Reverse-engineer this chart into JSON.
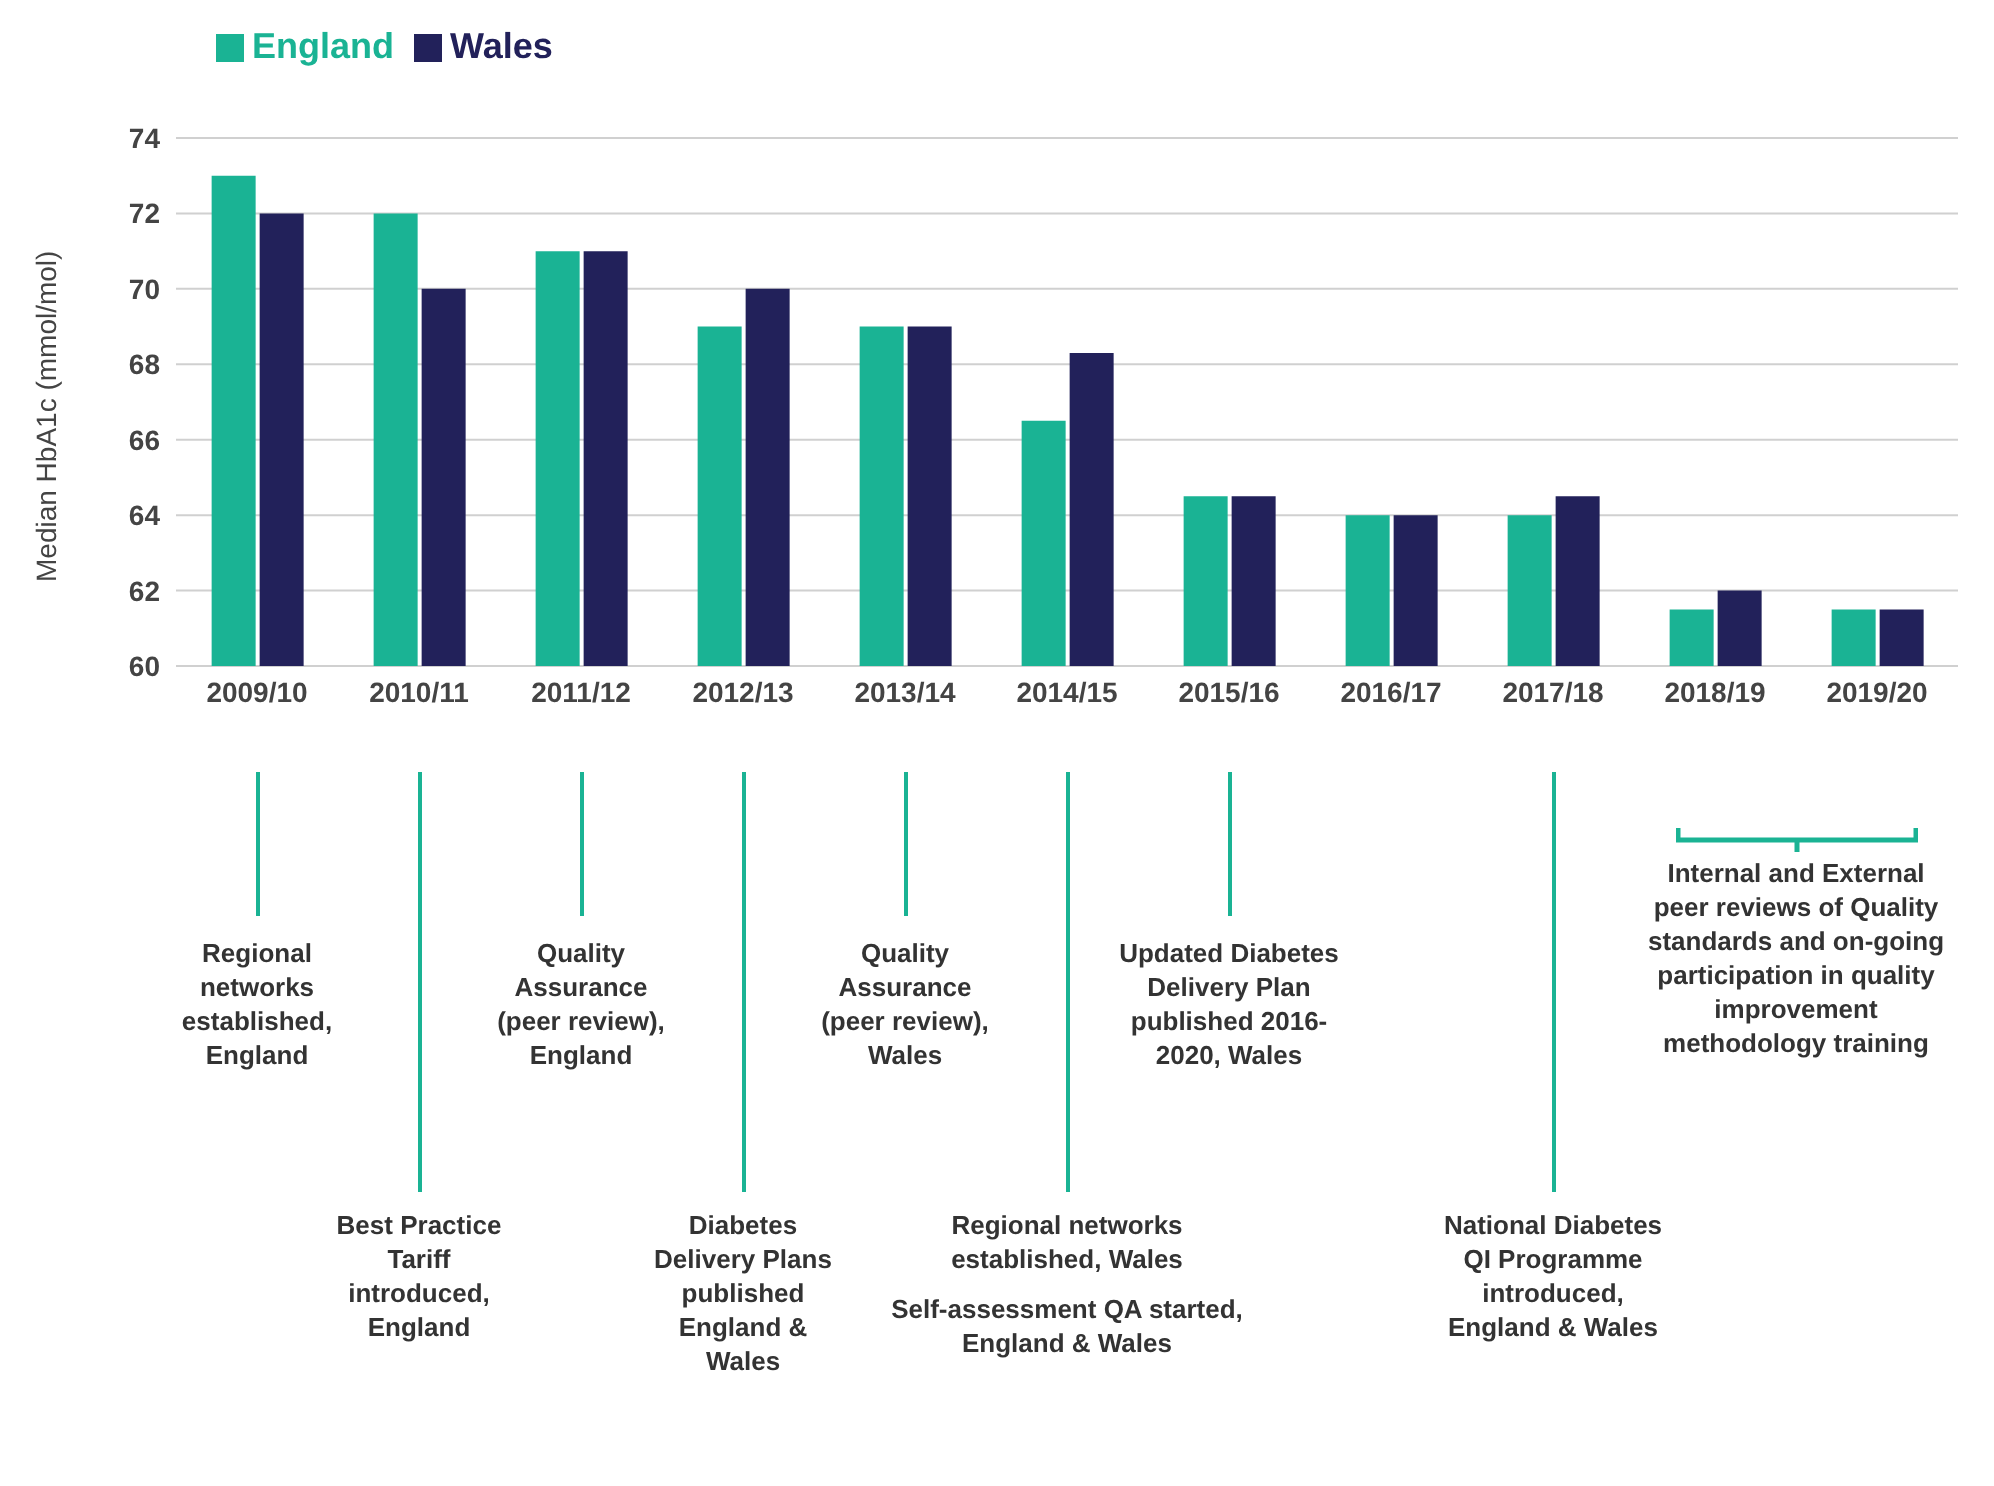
{
  "chart_data": {
    "type": "bar",
    "ylabel": "Median HbA1c (mmol/mol)",
    "categories": [
      "2009/10",
      "2010/11",
      "2011/12",
      "2012/13",
      "2013/14",
      "2014/15",
      "2015/16",
      "2016/17",
      "2017/18",
      "2018/19",
      "2019/20"
    ],
    "series": [
      {
        "name": "England",
        "color": "#1ab394",
        "values": [
          73,
          72,
          71,
          69,
          69,
          66.5,
          64.5,
          64,
          64,
          61.5,
          61.5
        ]
      },
      {
        "name": "Wales",
        "color": "#22215a",
        "values": [
          72,
          70,
          71,
          70,
          69,
          68.3,
          64.5,
          64,
          64.5,
          62,
          61.5
        ]
      }
    ],
    "ylim": [
      60,
      74
    ],
    "yticks": [
      60,
      62,
      64,
      66,
      68,
      70,
      72,
      74
    ],
    "grid": "y",
    "legend": "top left",
    "annotations": [
      "Regional networks established, England",
      "Best Practice Tariff introduced, England",
      "Quality Assurance (peer review), England",
      "Diabetes Delivery Plans published England & Wales",
      "Quality Assurance (peer review), Wales",
      "Regional networks established, Wales",
      "Self-assessment QA started, England & Wales",
      "Updated Diabetes Delivery Plan published 2016-2020, Wales",
      "National Diabetes QI Programme introduced, England & Wales",
      "Internal and External peer reviews of Quality standards and on-going participation in quality improvement methodology training"
    ]
  }
}
